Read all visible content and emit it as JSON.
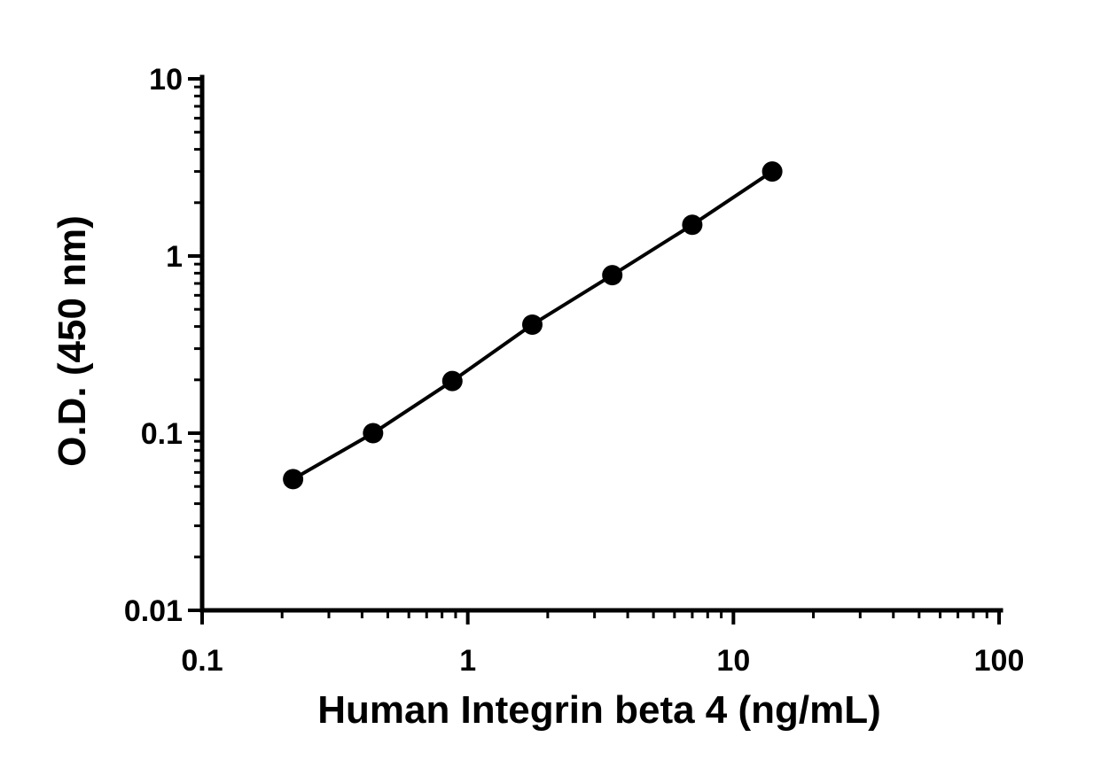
{
  "chart_data": {
    "type": "scatter",
    "xlabel": "Human Integrin beta 4 (ng/mL)",
    "ylabel": "O.D. (450 nm)",
    "xscale": "log",
    "yscale": "log",
    "xlim": [
      0.1,
      100
    ],
    "ylim": [
      0.01,
      10
    ],
    "xticks": [
      "0.1",
      "1",
      "10",
      "100"
    ],
    "yticks": [
      "0.01",
      "0.1",
      "1",
      "10"
    ],
    "grid": false,
    "connected_line": true,
    "series": [
      {
        "x": [
          0.22,
          0.44,
          0.875,
          1.75,
          3.5,
          7,
          14
        ],
        "y": [
          0.055,
          0.1,
          0.197,
          0.41,
          0.78,
          1.5,
          3.0
        ]
      }
    ],
    "colors": {
      "marker": "#000000",
      "line": "#000000",
      "axis": "#000000"
    }
  }
}
